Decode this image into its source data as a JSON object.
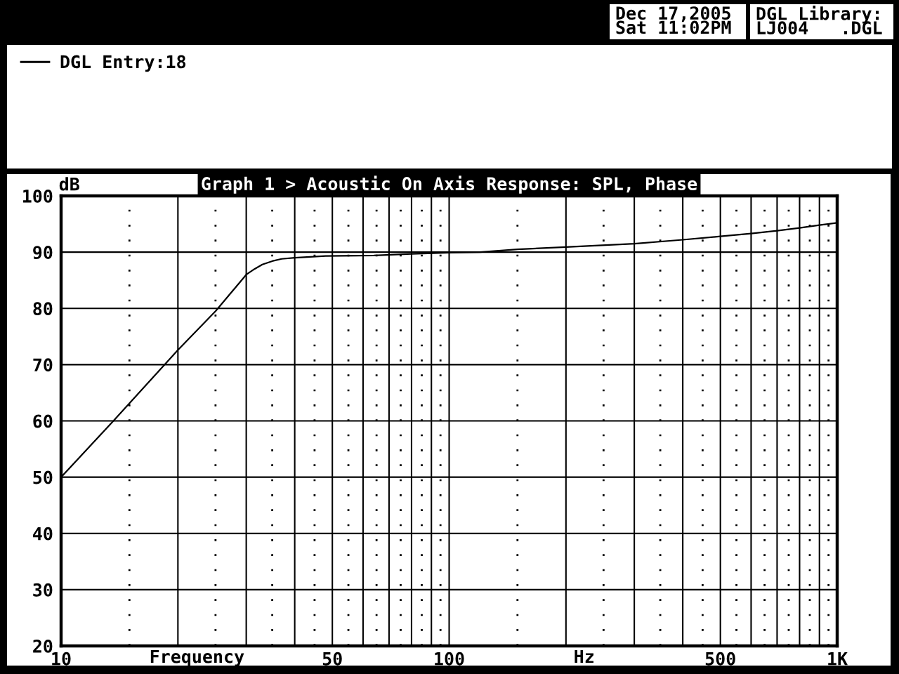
{
  "chart_data": {
    "type": "line",
    "title": "Graph 1 > Acoustic On Axis Response: SPL, Phase",
    "xlabel": "Frequency",
    "ylabel": "dB",
    "annotations": [
      "Dec 17,2005\nSat 11:02PM",
      "DGL Library:\nLJ004   .DGL",
      "Hz"
    ],
    "x": [
      10,
      13.6,
      20,
      25,
      30,
      31.5,
      33,
      35,
      37,
      40,
      48,
      64,
      80,
      100,
      120,
      150,
      200,
      300,
      400,
      500,
      600,
      700,
      800,
      900,
      1000
    ],
    "series": [
      {
        "name": "DGL Entry:18",
        "color": "#000000",
        "values": [
          50.0,
          59.9,
          72.6,
          79.5,
          86.0,
          87.0,
          87.8,
          88.4,
          88.8,
          89.0,
          89.3,
          89.4,
          89.7,
          89.9,
          90.0,
          90.5,
          90.9,
          91.5,
          92.2,
          92.8,
          93.3,
          93.8,
          94.3,
          94.8,
          95.2
        ]
      }
    ],
    "log": "x",
    "xlim": [
      10,
      1000
    ],
    "xticks": [
      10,
      {
        "value": 20,
        "label": null
      },
      {
        "value": 30,
        "label": null
      },
      {
        "value": 40,
        "label": null
      },
      50,
      {
        "value": 60,
        "label": null
      },
      {
        "value": 70,
        "label": null
      },
      {
        "value": 80,
        "label": null
      },
      {
        "value": 90,
        "label": null
      },
      100,
      {
        "value": 200,
        "label": null
      },
      {
        "value": 300,
        "label": null
      },
      {
        "value": 400,
        "label": null
      },
      500,
      {
        "value": 600,
        "label": null
      },
      {
        "value": 700,
        "label": null
      },
      {
        "value": 800,
        "label": null
      },
      {
        "value": 900,
        "label": null
      },
      {
        "value": 1000,
        "label": "1K"
      }
    ],
    "ylim": [
      20,
      100
    ],
    "yticks": [
      20,
      30,
      40,
      50,
      60,
      70,
      80,
      90,
      100
    ],
    "grid": true,
    "legend": "top left"
  }
}
